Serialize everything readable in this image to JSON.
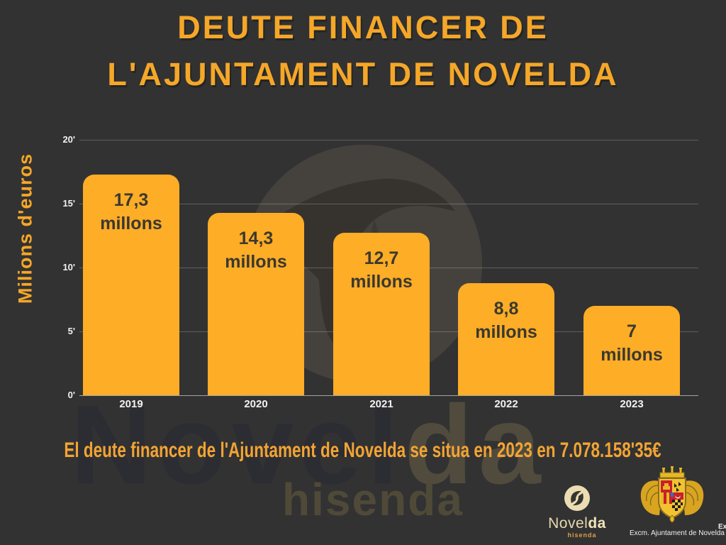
{
  "page": {
    "background_color": "#323233",
    "accent_color": "#F5A728"
  },
  "title": {
    "line1": "DEUTE FINANCER DE",
    "line2": "L'AJUNTAMENT DE NOVELDA"
  },
  "chart_data": {
    "type": "bar",
    "title": "Deute financer de l'Ajuntament de Novelda",
    "categories": [
      "2019",
      "2020",
      "2021",
      "2022",
      "2023"
    ],
    "values": [
      17.3,
      14.3,
      12.7,
      8.8,
      7
    ],
    "bar_labels": [
      [
        "17,3",
        "millons"
      ],
      [
        "14,3",
        "millons"
      ],
      [
        "12,7",
        "millons"
      ],
      [
        "8,8",
        "millons"
      ],
      [
        "7",
        "millons"
      ]
    ],
    "ylabel": "Milions d'euros",
    "yticks": [
      "20'",
      "15'",
      "10'",
      "5'",
      "0'"
    ],
    "ytick_values": [
      20,
      15,
      10,
      5,
      0
    ],
    "ylim": [
      0,
      20
    ],
    "grid": true,
    "legend_position": "none",
    "bar_color": "#FDAD26",
    "bar_label_color": "#3B3830",
    "axis_text_color": "#F2F2F2"
  },
  "caption": "El deute financer de l'Ajuntament de Novelda se situa en 2023 en 7.078.158'35€",
  "watermark": {
    "word_light": "Novel",
    "word_accent": "da",
    "subword": "hisenda"
  },
  "logos": {
    "novelda_hisenda": {
      "name_light": "Novel",
      "name_bold": "da",
      "tagline": "hisenda"
    },
    "ajuntament_caption": "Excm. Ajuntament de Novelda",
    "edge_fragment": "Ex"
  }
}
